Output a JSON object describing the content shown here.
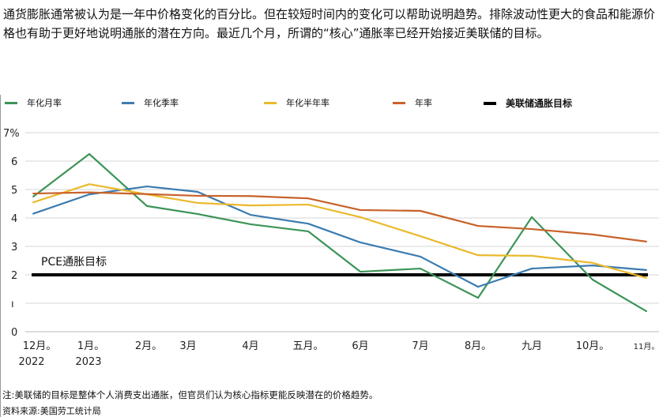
{
  "intro": "通货膨胀通常被认为是一年中价格变化的百分比。但在较短时间内的变化可以帮助说明趋势。排除波动性更大的食品和能源价格也有助于更好地说明通胀的潜在方向。最近几个月，所谓的“核心”通胀率已经开始接近美联储的目标。",
  "legend": [
    {
      "label": "年化月率",
      "color": "#3c9457"
    },
    {
      "label": "年化季率",
      "color": "#3b7bb0"
    },
    {
      "label": "年化半年率",
      "color": "#eab92d"
    },
    {
      "label": "年率",
      "color": "#c8622a"
    },
    {
      "label": "美联储通胀目标",
      "color": "#000000"
    }
  ],
  "chart_data": {
    "type": "line",
    "categories": [
      "12月。",
      "1月。",
      "2月。",
      "3月",
      "4月",
      "五月。",
      "6月",
      "7月",
      "8月。",
      "九月",
      "10月。",
      "11月。"
    ],
    "year_labels": [
      "2022",
      "2023"
    ],
    "ylim": [
      0,
      7
    ],
    "yticks": [
      "0",
      "ı",
      "2",
      "3",
      "4",
      "5",
      "6",
      "7%"
    ],
    "grid": true,
    "legend_position": "top",
    "series": [
      {
        "name": "年化月率",
        "color": "#3c9457",
        "values": [
          4.75,
          6.25,
          4.42,
          4.14,
          3.78,
          3.53,
          2.11,
          2.22,
          1.19,
          4.03,
          1.83,
          0.72
        ]
      },
      {
        "name": "年化季率",
        "color": "#3b7bb0",
        "values": [
          4.15,
          4.83,
          5.11,
          4.92,
          4.11,
          3.8,
          3.14,
          2.64,
          1.58,
          2.22,
          2.33,
          2.17
        ]
      },
      {
        "name": "年化半年率",
        "color": "#eab92d",
        "values": [
          4.55,
          5.19,
          4.83,
          4.53,
          4.44,
          4.47,
          4.03,
          3.36,
          2.69,
          2.67,
          2.42,
          1.89
        ]
      },
      {
        "name": "年率",
        "color": "#c8622a",
        "values": [
          4.86,
          4.9,
          4.84,
          4.78,
          4.77,
          4.69,
          4.28,
          4.25,
          3.72,
          3.61,
          3.42,
          3.17
        ]
      }
    ],
    "target": {
      "name": "美联储通胀目标",
      "value": 2,
      "label": "PCE通胀目标",
      "color": "#000000"
    }
  },
  "note": "注:美联储的目标是整体个人消费支出通胀，但官员们认为核心指标更能反映潜在的价格趋势。",
  "source": "资料来源:美国劳工统计局"
}
